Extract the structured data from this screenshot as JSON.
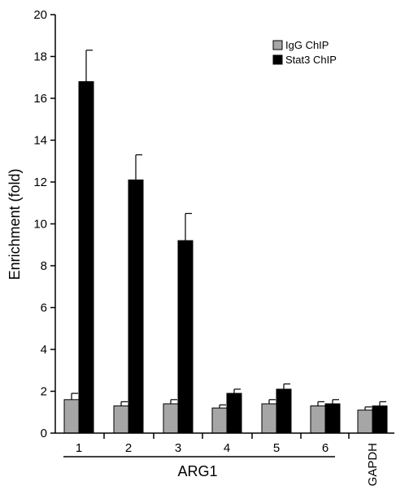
{
  "chart_data": {
    "type": "bar",
    "title": "",
    "xlabel": "",
    "ylabel": "Enrichment (fold)",
    "ylim": [
      0,
      20
    ],
    "yticks": [
      0,
      2,
      4,
      6,
      8,
      10,
      12,
      14,
      16,
      18,
      20
    ],
    "categories": [
      "1",
      "2",
      "3",
      "4",
      "5",
      "6",
      "GAPDH"
    ],
    "group_label": "ARG1",
    "grid": false,
    "legend_position": "top-right",
    "series": [
      {
        "name": "IgG ChIP",
        "color": "#a6a6a6",
        "values": [
          1.6,
          1.3,
          1.4,
          1.2,
          1.4,
          1.3,
          1.1
        ],
        "errors": [
          0.3,
          0.2,
          0.2,
          0.15,
          0.2,
          0.2,
          0.15
        ]
      },
      {
        "name": "Stat3 ChIP",
        "color": "#000000",
        "values": [
          16.8,
          12.1,
          9.2,
          1.9,
          2.1,
          1.4,
          1.3
        ],
        "errors": [
          1.5,
          1.2,
          1.3,
          0.2,
          0.25,
          0.2,
          0.2
        ]
      }
    ]
  }
}
